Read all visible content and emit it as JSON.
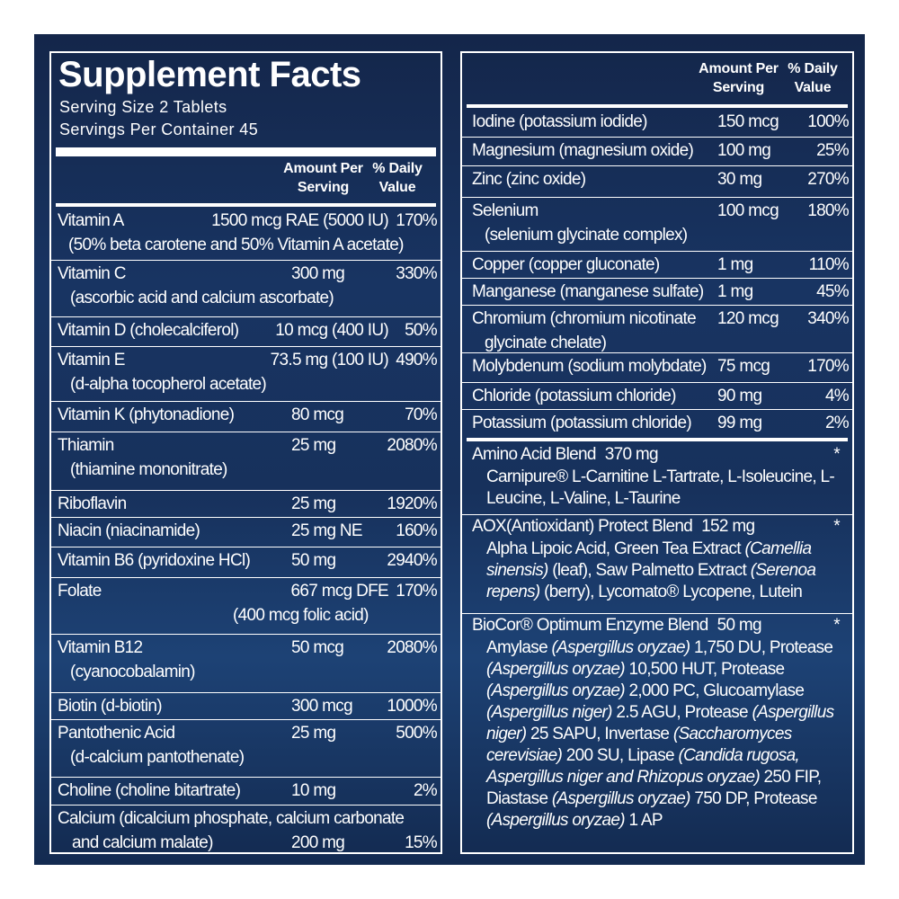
{
  "left": {
    "title": "Supplement Facts",
    "serving_size": "Serving Size 2 Tablets",
    "servings_per_container": "Servings Per Container 45",
    "amount_header": "Amount Per Serving",
    "dv_header": "% Daily Value",
    "rows": [
      {
        "name": "Vitamin A",
        "amount": "1500 mcg RAE (5000 IU)",
        "dv": "170%",
        "sub": "(50% beta carotene and 50% Vitamin A acetate)"
      },
      {
        "name": "Vitamin C",
        "amount": "300 mg",
        "dv": "330%",
        "sub": "(ascorbic acid and calcium ascorbate)"
      },
      {
        "name": "Vitamin D (cholecalciferol)",
        "amount": "10 mcg (400 IU)",
        "dv": "50%"
      },
      {
        "name": "Vitamin E",
        "amount": "73.5 mg (100 IU)",
        "dv": "490%",
        "sub": "(d-alpha tocopherol acetate)"
      },
      {
        "name": "Vitamin K (phytonadione)",
        "amount": "80 mcg",
        "dv": "70%"
      },
      {
        "name": "Thiamin",
        "amount": "25 mg",
        "dv": "2080%",
        "sub": "(thiamine mononitrate)"
      },
      {
        "name": "Riboflavin",
        "amount": "25 mg",
        "dv": "1920%"
      },
      {
        "name": "Niacin (niacinamide)",
        "amount": "25 mg NE",
        "dv": "160%"
      },
      {
        "name": "Vitamin B6 (pyridoxine HCl)",
        "amount": "50 mg",
        "dv": "2940%"
      },
      {
        "name": "Folate",
        "amount": "667 mcg DFE",
        "dv": "170%",
        "sub": "(400 mcg folic acid)"
      },
      {
        "name": "Vitamin B12",
        "amount": "50 mcg",
        "dv": "2080%",
        "sub": "(cyanocobalamin)"
      },
      {
        "name": "Biotin (d-biotin)",
        "amount": "300 mcg",
        "dv": "1000%"
      },
      {
        "name": "Pantothenic Acid",
        "amount": "25 mg",
        "dv": "500%",
        "sub": "(d-calcium pantothenate)"
      },
      {
        "name": "Choline (choline bitartrate)",
        "amount": "10 mg",
        "dv": "2%"
      },
      {
        "name": "Calcium (dicalcium phosphate, calcium carbonate",
        "amount": "200 mg",
        "dv": "15%",
        "sub": "and calcium malate)"
      }
    ]
  },
  "right": {
    "amount_header": "Amount Per Serving",
    "dv_header": "% Daily Value",
    "rows": [
      {
        "name": "Iodine (potassium iodide)",
        "amount": "150 mcg",
        "dv": "100%"
      },
      {
        "name": "Magnesium (magnesium oxide)",
        "amount": "100 mg",
        "dv": "25%"
      },
      {
        "name": "Zinc (zinc oxide)",
        "amount": "30 mg",
        "dv": "270%"
      },
      {
        "name": "Selenium",
        "amount": "100 mcg",
        "dv": "180%",
        "sub": "(selenium glycinate complex)"
      },
      {
        "name": "Copper (copper gluconate)",
        "amount": "1 mg",
        "dv": "110%"
      },
      {
        "name": "Manganese (manganese sulfate)",
        "amount": "1 mg",
        "dv": "45%"
      },
      {
        "name": "Chromium (chromium nicotinate",
        "amount": "120 mcg",
        "dv": "340%",
        "sub": "glycinate chelate)"
      },
      {
        "name": "Molybdenum (sodium molybdate)",
        "amount": "75 mcg",
        "dv": "170%"
      },
      {
        "name": "Chloride (potassium chloride)",
        "amount": "90 mg",
        "dv": "4%"
      },
      {
        "name": "Potassium (potassium chloride)",
        "amount": "99 mg",
        "dv": "2%"
      }
    ],
    "blends": [
      {
        "name": "Amino Acid Blend",
        "amount": "370 mg",
        "dv": "*",
        "description": [
          {
            "text": "Carnipure® L-Carnitine L-Tartrate, L-Isoleucine, L-Leucine, L-Valine, L-Taurine"
          }
        ]
      },
      {
        "name": "AOX(Antioxidant) Protect Blend",
        "amount": "152 mg",
        "dv": "*",
        "description": [
          {
            "text": "Alpha Lipoic Acid, Green Tea Extract "
          },
          {
            "text": "(Camellia sinensis)",
            "italic": true
          },
          {
            "text": " (leaf), Saw Palmetto Extract "
          },
          {
            "text": "(Serenoa repens)",
            "italic": true
          },
          {
            "text": " (berry), Lycomato® Lycopene, Lutein"
          }
        ]
      },
      {
        "name": "BioCor® Optimum Enzyme Blend",
        "amount": "50 mg",
        "dv": "*",
        "description": [
          {
            "text": "Amylase "
          },
          {
            "text": "(Aspergillus oryzae)",
            "italic": true
          },
          {
            "text": " 1,750 DU, Protease "
          },
          {
            "text": "(Aspergillus oryzae)",
            "italic": true
          },
          {
            "text": " 10,500 HUT, Protease "
          },
          {
            "text": "(Aspergillus oryzae)",
            "italic": true
          },
          {
            "text": " 2,000 PC, Glucoamylase "
          },
          {
            "text": "(Aspergillus niger)",
            "italic": true
          },
          {
            "text": " 2.5 AGU, Protease "
          },
          {
            "text": "(Aspergillus niger)",
            "italic": true
          },
          {
            "text": " 25 SAPU, Invertase "
          },
          {
            "text": "(Saccharomyces cerevisiae)",
            "italic": true
          },
          {
            "text": " 200 SU, Lipase "
          },
          {
            "text": "(Candida rugosa, Aspergillus niger and Rhizopus oryzae)",
            "italic": true
          },
          {
            "text": " 250 FIP, Diastase "
          },
          {
            "text": "(Aspergillus oryzae)",
            "italic": true
          },
          {
            "text": " 750 DP, Protease "
          },
          {
            "text": "(Aspergillus oryzae)",
            "italic": true
          },
          {
            "text": " 1 AP"
          }
        ]
      }
    ]
  }
}
